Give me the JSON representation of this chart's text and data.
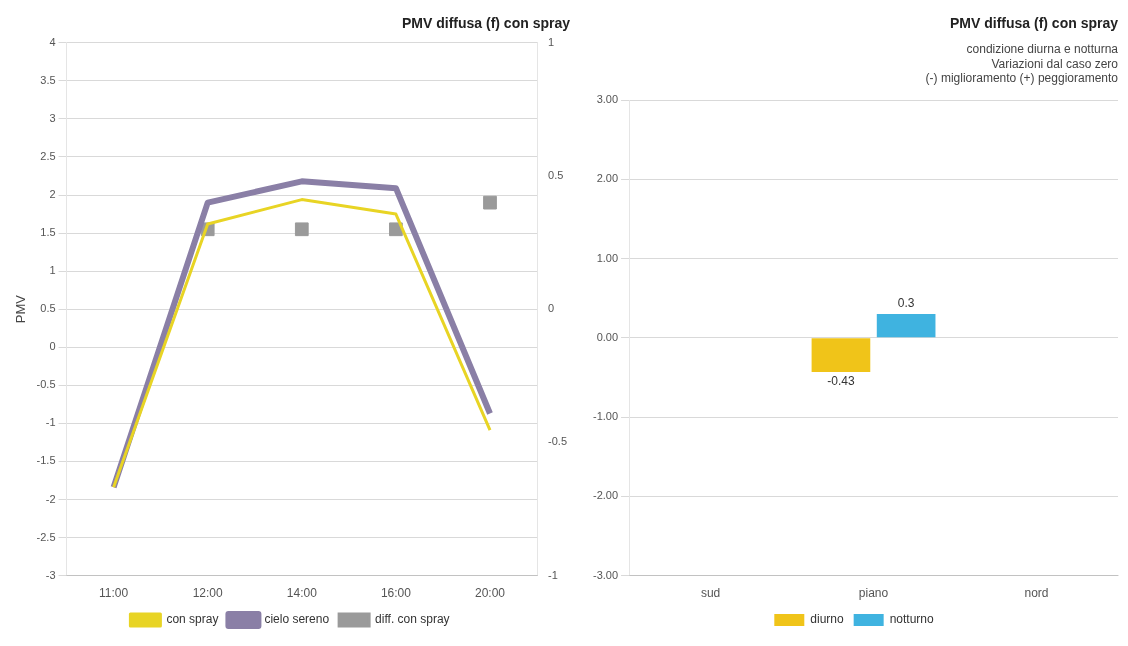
{
  "chart_data": [
    {
      "type": "line",
      "title": "PMV diffusa (f) con spray",
      "ylabel": "PMV",
      "categories": [
        "11:00",
        "12:00",
        "14:00",
        "16:00",
        "20:00"
      ],
      "series": [
        {
          "name": "con spray",
          "color": "#e8d424",
          "values": [
            -1.84,
            1.62,
            1.94,
            1.75,
            -1.09
          ]
        },
        {
          "name": "cielo sereno",
          "color": "#8a7fa6",
          "values": [
            -1.84,
            1.9,
            2.18,
            2.09,
            -0.87
          ]
        },
        {
          "name": "diff. con spray",
          "type": "scatter",
          "axis": "y2",
          "color": "#9a9a9a",
          "marker": "square",
          "values": [
            null,
            0.3,
            0.3,
            0.3,
            0.4
          ]
        }
      ],
      "ylim": [
        -3,
        4
      ],
      "yticks": [
        -3,
        -2.5,
        -2,
        -1.5,
        -1,
        -0.5,
        0,
        0.5,
        1,
        1.5,
        2,
        2.5,
        3,
        3.5,
        4
      ],
      "y2lim": [
        -1,
        1
      ],
      "y2ticks": [
        -1,
        -0.5,
        0,
        0.5,
        1
      ],
      "grid": "y",
      "legend": "bottom"
    },
    {
      "type": "bar",
      "title": "PMV diffusa (f) con spray",
      "subtitle": "condizione diurna e notturna",
      "annotations": [
        "Variazioni dal caso zero",
        "(-) miglioramento (+) peggioramento"
      ],
      "categories": [
        "sud",
        "piano",
        "nord"
      ],
      "series": [
        {
          "name": "diurno",
          "color": "#f0c419",
          "values": [
            null,
            -0.43,
            null
          ]
        },
        {
          "name": "notturno",
          "color": "#3fb3e0",
          "values": [
            null,
            0.3,
            null
          ]
        }
      ],
      "ylim": [
        -3,
        3
      ],
      "yticks": [
        {
          "value": -3,
          "label": "-3.00"
        },
        {
          "value": -2,
          "label": "-2.00"
        },
        {
          "value": -1,
          "label": "-1.00"
        },
        {
          "value": 0,
          "label": "0.00"
        },
        {
          "value": 1,
          "label": "1.00"
        },
        {
          "value": 2,
          "label": "2.00"
        },
        {
          "value": 3,
          "label": "3.00"
        }
      ],
      "grid": "y",
      "legend": "bottom",
      "data_labels": true
    }
  ]
}
